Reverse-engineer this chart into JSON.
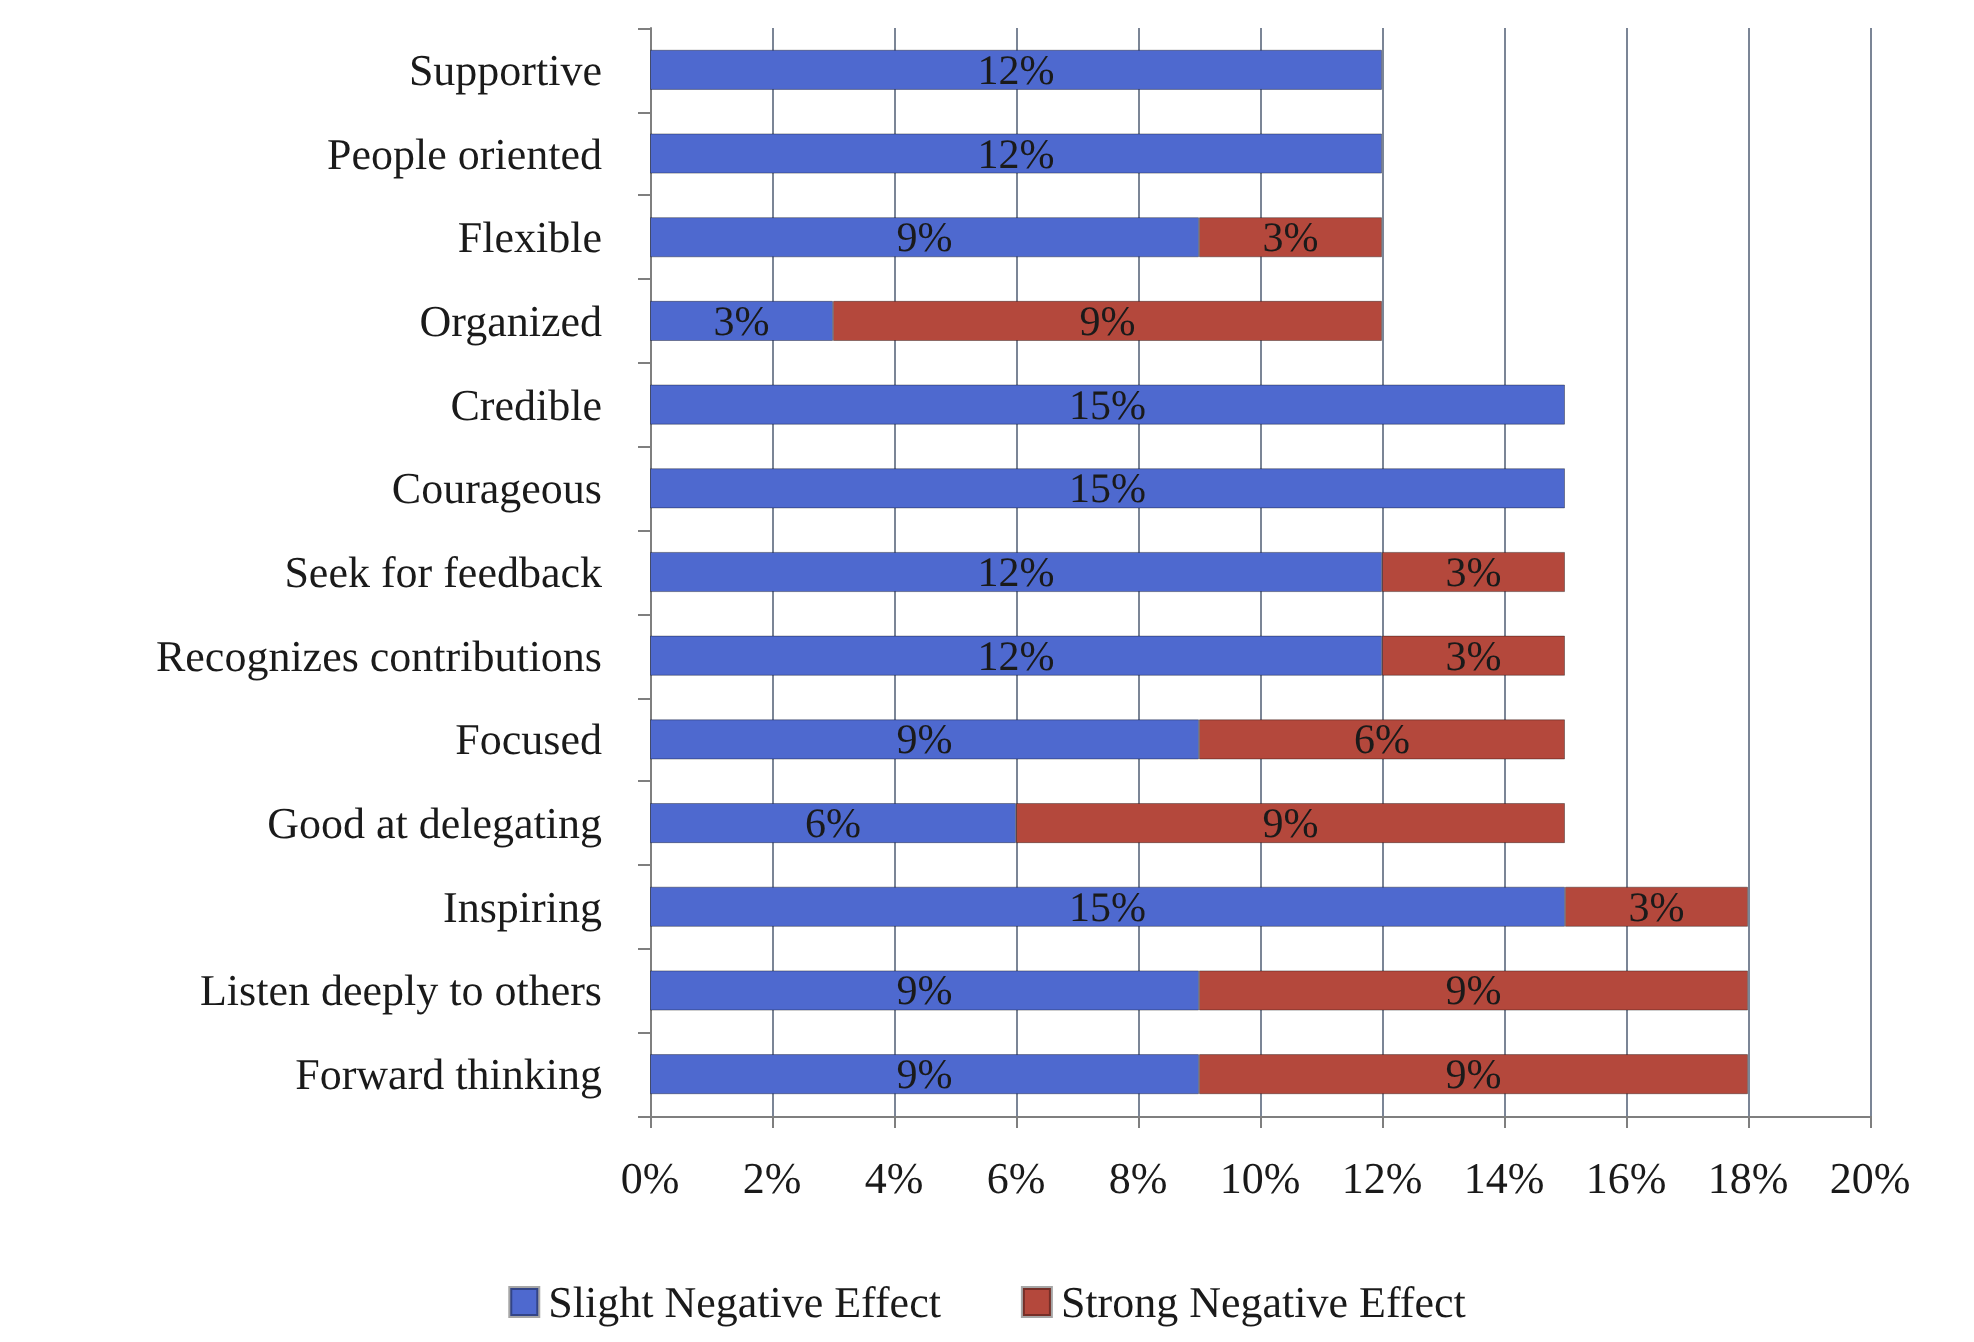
{
  "chart_data": {
    "type": "bar",
    "orientation": "horizontal",
    "stacked": true,
    "categories": [
      "Supportive",
      "People oriented",
      "Flexible",
      "Organized",
      "Credible",
      "Courageous",
      "Seek for feedback",
      "Recognizes contributions",
      "Focused",
      "Good at delegating",
      "Inspiring",
      "Listen deeply to others",
      "Forward thinking"
    ],
    "series": [
      {
        "name": "Slight Negative Effect",
        "color": "#4e69cf",
        "values": [
          12,
          12,
          9,
          3,
          15,
          15,
          12,
          12,
          9,
          6,
          15,
          9,
          9
        ],
        "value_labels": [
          "12%",
          "12%",
          "9%",
          "3%",
          "15%",
          "15%",
          "12%",
          "12%",
          "9%",
          "6%",
          "15%",
          "9%",
          "9%"
        ]
      },
      {
        "name": "Strong Negative Effect",
        "color": "#b4483c",
        "values": [
          null,
          null,
          3,
          9,
          null,
          null,
          3,
          3,
          6,
          9,
          3,
          9,
          9
        ],
        "value_labels": [
          null,
          null,
          "3%",
          "9%",
          null,
          null,
          "3%",
          "3%",
          "6%",
          "9%",
          "3%",
          "9%",
          "9%"
        ]
      }
    ],
    "xlim": [
      0,
      20
    ],
    "xticks": [
      {
        "value": 0,
        "label": "0%"
      },
      {
        "value": 2,
        "label": "2%"
      },
      {
        "value": 4,
        "label": "4%"
      },
      {
        "value": 6,
        "label": "6%"
      },
      {
        "value": 8,
        "label": "8%"
      },
      {
        "value": 10,
        "label": "10%"
      },
      {
        "value": 12,
        "label": "12%"
      },
      {
        "value": 14,
        "label": "14%"
      },
      {
        "value": 16,
        "label": "16%"
      },
      {
        "value": 18,
        "label": "18%"
      },
      {
        "value": 20,
        "label": "20%"
      }
    ],
    "grid": "x",
    "legend": "bottom"
  }
}
